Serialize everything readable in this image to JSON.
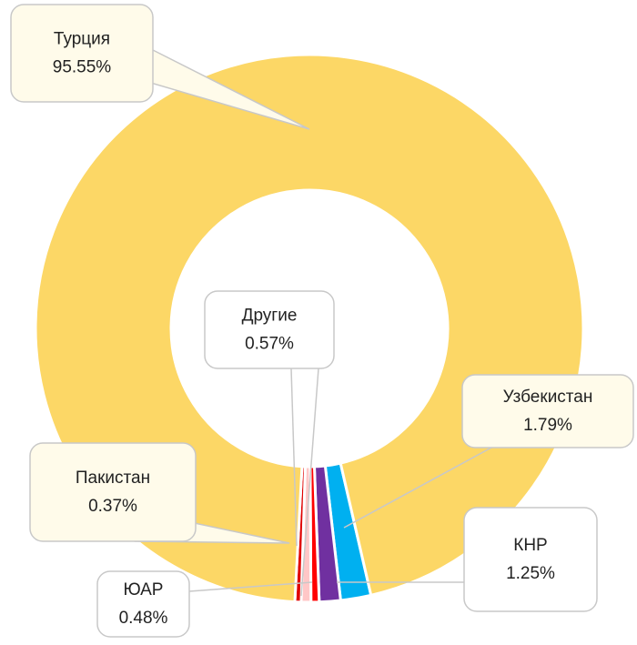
{
  "chart_data": {
    "type": "donut",
    "categories": [
      "Узбекистан",
      "КНР",
      "ЮАР",
      "Другие",
      "Пакистан",
      "Турция"
    ],
    "values": [
      1.79,
      1.25,
      0.48,
      0.57,
      0.37,
      95.55
    ],
    "value_labels": [
      "1.79%",
      "1.25%",
      "0.48%",
      "0.57%",
      "0.37%",
      "95.55%"
    ],
    "colors": [
      "#00b0f0",
      "#7030a0",
      "#ff0000",
      "#ffc7c7",
      "#e00000",
      "#fcd766"
    ]
  }
}
